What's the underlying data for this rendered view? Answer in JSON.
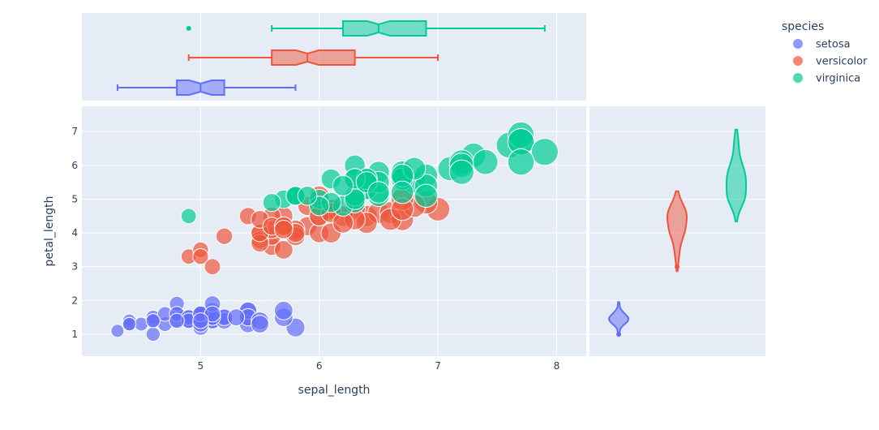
{
  "chart_data": {
    "type": "scatter",
    "xlabel": "sepal_length",
    "ylabel": "petal_length",
    "x_ticks": [
      "5",
      "6",
      "7",
      "8"
    ],
    "y_ticks": [
      "1",
      "2",
      "3",
      "4",
      "5",
      "6",
      "7"
    ],
    "xlim": [
      4.0,
      8.25
    ],
    "ylim": [
      0.35,
      7.75
    ],
    "legend": {
      "title": "species",
      "position": "top-right",
      "entries": [
        "setosa",
        "versicolor",
        "virginica"
      ]
    },
    "colors": {
      "setosa": "#636efa",
      "versicolor": "#ef553b",
      "virginica": "#00cc96",
      "plot_bg": "#e5ecf6"
    },
    "marginal_x": "box",
    "marginal_y": "violin",
    "series": [
      {
        "name": "setosa",
        "x": [
          5.1,
          4.9,
          4.7,
          4.6,
          5.0,
          5.4,
          4.6,
          5.0,
          4.4,
          4.9,
          5.4,
          4.8,
          4.8,
          4.3,
          5.8,
          5.7,
          5.4,
          5.1,
          5.7,
          5.1,
          5.4,
          5.1,
          4.6,
          5.1,
          4.8,
          5.0,
          5.0,
          5.2,
          5.2,
          4.7,
          4.8,
          5.4,
          5.2,
          5.5,
          4.9,
          5.0,
          5.5,
          4.9,
          4.4,
          5.1,
          5.0,
          4.5,
          4.4,
          5.0,
          5.1,
          4.8,
          5.1,
          4.6,
          5.3,
          5.0
        ],
        "y": [
          1.4,
          1.4,
          1.3,
          1.5,
          1.4,
          1.7,
          1.4,
          1.5,
          1.4,
          1.5,
          1.5,
          1.6,
          1.4,
          1.1,
          1.2,
          1.5,
          1.3,
          1.4,
          1.7,
          1.5,
          1.7,
          1.5,
          1.0,
          1.7,
          1.9,
          1.6,
          1.6,
          1.5,
          1.4,
          1.6,
          1.6,
          1.5,
          1.5,
          1.4,
          1.5,
          1.2,
          1.3,
          1.4,
          1.3,
          1.5,
          1.3,
          1.3,
          1.3,
          1.6,
          1.9,
          1.4,
          1.6,
          1.4,
          1.5,
          1.4
        ],
        "box": {
          "min": 4.3,
          "q1": 4.8,
          "median": 5.0,
          "q3": 5.2,
          "max": 5.8
        }
      },
      {
        "name": "versicolor",
        "x": [
          7.0,
          6.4,
          6.9,
          5.5,
          6.5,
          5.7,
          6.3,
          4.9,
          6.6,
          5.2,
          5.0,
          5.9,
          6.0,
          6.1,
          5.6,
          6.7,
          5.6,
          5.8,
          6.2,
          5.6,
          5.9,
          6.1,
          6.3,
          6.1,
          6.4,
          6.6,
          6.8,
          6.7,
          6.0,
          5.7,
          5.5,
          5.5,
          5.8,
          6.0,
          5.4,
          6.0,
          6.7,
          6.3,
          5.6,
          5.5,
          5.5,
          6.1,
          5.8,
          5.0,
          5.6,
          5.7,
          5.7,
          6.2,
          5.1,
          5.7
        ],
        "y": [
          4.7,
          4.5,
          4.9,
          4.0,
          4.6,
          4.5,
          4.7,
          3.3,
          4.6,
          3.9,
          3.5,
          4.2,
          4.0,
          4.7,
          3.6,
          4.4,
          4.5,
          4.1,
          4.5,
          3.9,
          4.8,
          4.0,
          4.9,
          4.7,
          4.3,
          4.4,
          4.8,
          5.0,
          4.5,
          3.5,
          3.8,
          3.7,
          3.9,
          5.1,
          4.5,
          4.5,
          4.7,
          4.4,
          4.1,
          4.0,
          4.4,
          4.6,
          4.0,
          3.3,
          4.2,
          4.2,
          4.2,
          4.3,
          3.0,
          4.1
        ],
        "box": {
          "min": 4.9,
          "q1": 5.6,
          "median": 5.9,
          "q3": 6.3,
          "max": 7.0
        }
      },
      {
        "name": "virginica",
        "x": [
          6.3,
          5.8,
          7.1,
          6.3,
          6.5,
          7.6,
          4.9,
          7.3,
          6.7,
          7.2,
          6.5,
          6.4,
          6.8,
          5.7,
          5.8,
          6.4,
          6.5,
          7.7,
          7.7,
          6.0,
          6.9,
          5.6,
          7.7,
          6.3,
          6.7,
          7.2,
          6.2,
          6.1,
          6.4,
          7.2,
          7.4,
          7.9,
          6.4,
          6.3,
          6.1,
          7.7,
          6.3,
          6.4,
          6.0,
          6.9,
          6.7,
          6.9,
          5.8,
          6.8,
          6.7,
          6.7,
          6.3,
          6.5,
          6.2,
          5.9
        ],
        "y": [
          6.0,
          5.1,
          5.9,
          5.6,
          5.8,
          6.6,
          4.5,
          6.3,
          5.8,
          6.1,
          5.1,
          5.3,
          5.5,
          5.0,
          5.1,
          5.3,
          5.5,
          6.7,
          6.9,
          5.0,
          5.7,
          4.9,
          6.7,
          4.9,
          5.7,
          6.0,
          4.8,
          4.9,
          5.6,
          5.8,
          6.1,
          6.4,
          5.6,
          5.1,
          5.6,
          6.1,
          5.6,
          5.5,
          4.8,
          5.4,
          5.6,
          5.1,
          5.1,
          5.9,
          5.7,
          5.2,
          5.0,
          5.2,
          5.4,
          5.1
        ],
        "box": {
          "min": 5.6,
          "q1": 6.2,
          "median": 6.5,
          "q3": 6.9,
          "max": 7.9,
          "outliers": [
            4.9
          ]
        }
      }
    ]
  }
}
